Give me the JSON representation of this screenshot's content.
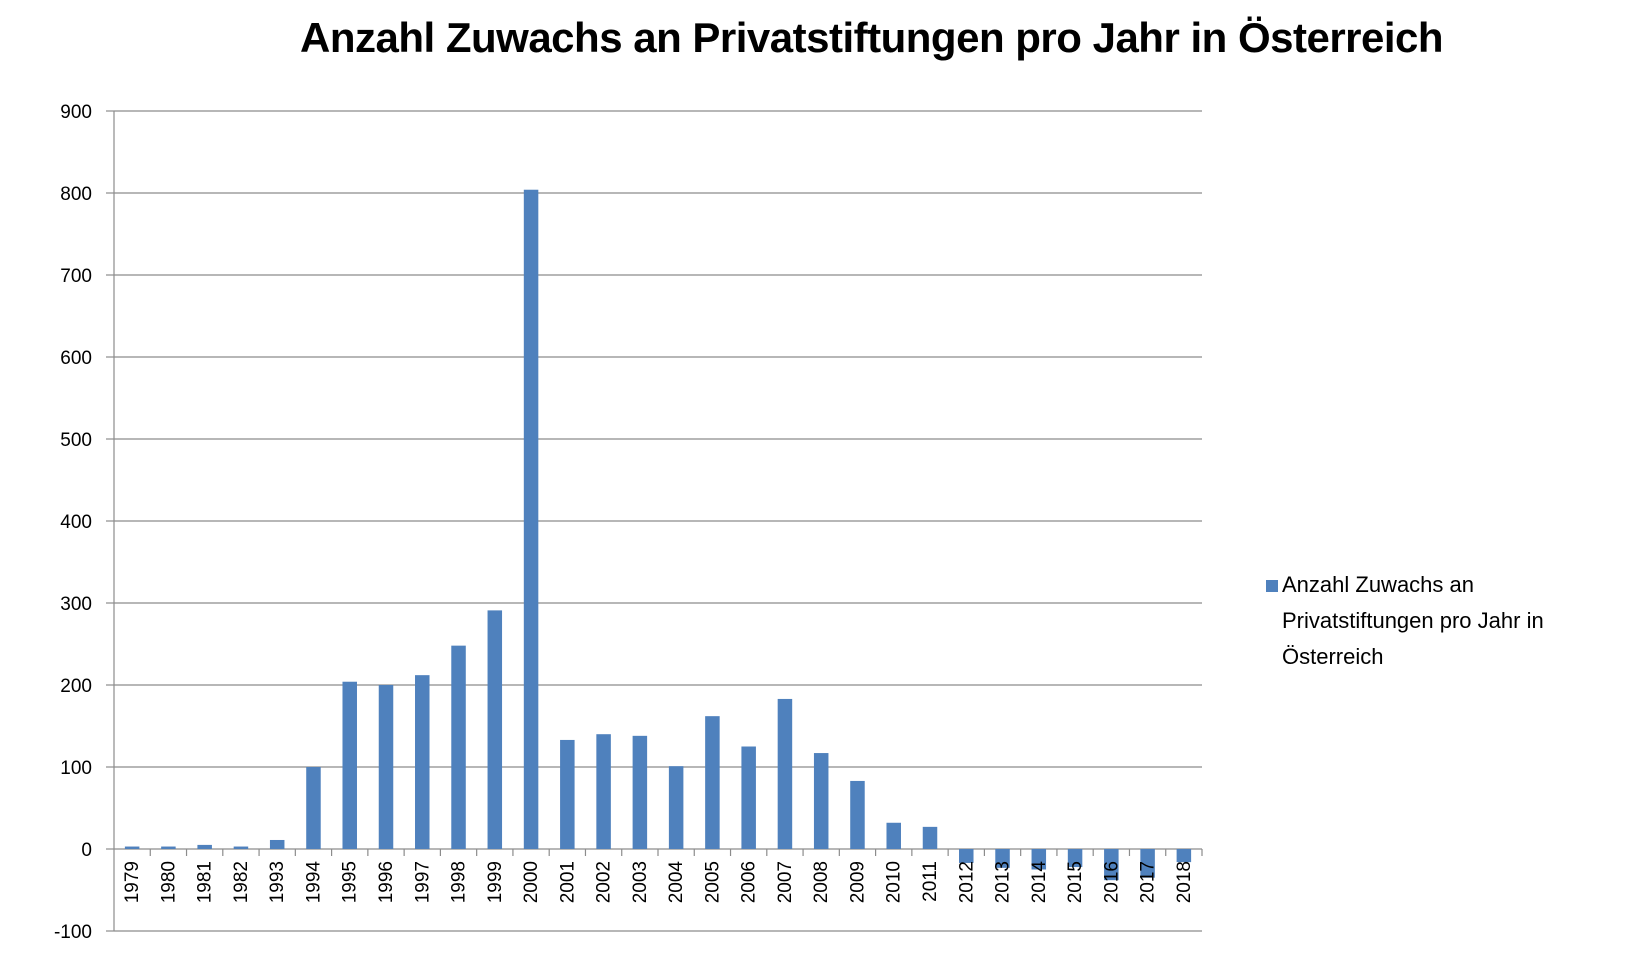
{
  "chart_data": {
    "type": "bar",
    "title": "Anzahl Zuwachs an Privatstiftungen pro Jahr in Österreich",
    "xlabel": "",
    "ylabel": "",
    "ylim": [
      -100,
      900
    ],
    "yticks": [
      -100,
      0,
      100,
      200,
      300,
      400,
      500,
      600,
      700,
      800,
      900
    ],
    "grid": true,
    "legend_position": "right",
    "categories": [
      "1979",
      "1980",
      "1981",
      "1982",
      "1993",
      "1994",
      "1995",
      "1996",
      "1997",
      "1998",
      "1999",
      "2000",
      "2001",
      "2002",
      "2003",
      "2004",
      "2005",
      "2006",
      "2007",
      "2008",
      "2009",
      "2010",
      "2011",
      "2012",
      "2013",
      "2014",
      "2015",
      "2016",
      "2017",
      "2018"
    ],
    "series": [
      {
        "name": "Anzahl Zuwachs an Privatstiftungen pro Jahr in Österreich",
        "legend_lines": [
          "Anzahl Zuwachs an",
          "Privatstiftungen pro Jahr in",
          "Österreich"
        ],
        "color": "#4f81bd",
        "values": [
          3,
          3,
          5,
          3,
          11,
          100,
          204,
          200,
          212,
          248,
          291,
          804,
          133,
          140,
          138,
          101,
          162,
          125,
          183,
          117,
          83,
          32,
          27,
          -17,
          -23,
          -25,
          -22,
          -38,
          -35,
          -16
        ]
      }
    ]
  }
}
